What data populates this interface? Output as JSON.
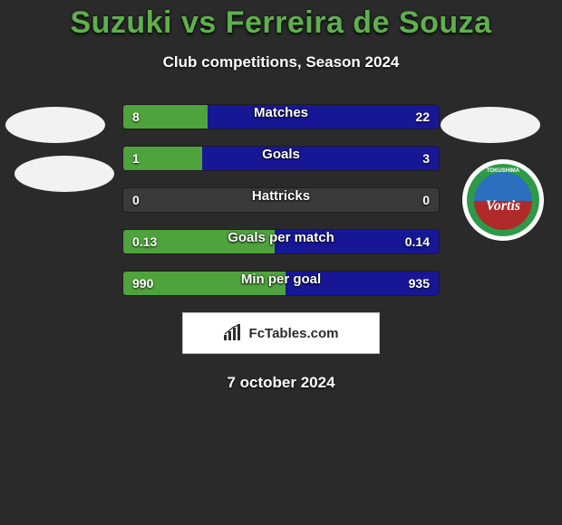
{
  "title": "Suzuki vs Ferreira de Souza",
  "subtitle": "Club competitions, Season 2024",
  "date": "7 october 2024",
  "attribution": "FcTables.com",
  "colors": {
    "title": "#5fb04d",
    "bar_left": "#4fa33c",
    "bar_right": "#171796",
    "bar_track": "rgba(120,120,120,0.22)",
    "background": "#2a2a2a",
    "text": "#ffffff"
  },
  "team_logo": {
    "outer": "#2e9a49",
    "inner_top": "#2c6fbf",
    "inner_bottom": "#b02a2a",
    "script": "Vortis",
    "top_text": "TOKUSHIMA"
  },
  "rows": [
    {
      "label": "Matches",
      "left": "8",
      "right": "22",
      "left_pct": 26.7,
      "right_pct": 73.3
    },
    {
      "label": "Goals",
      "left": "1",
      "right": "3",
      "left_pct": 25.0,
      "right_pct": 75.0
    },
    {
      "label": "Hattricks",
      "left": "0",
      "right": "0",
      "left_pct": 0.0,
      "right_pct": 0.0
    },
    {
      "label": "Goals per match",
      "left": "0.13",
      "right": "0.14",
      "left_pct": 48.1,
      "right_pct": 51.9
    },
    {
      "label": "Min per goal",
      "left": "990",
      "right": "935",
      "left_pct": 51.4,
      "right_pct": 48.6
    }
  ]
}
